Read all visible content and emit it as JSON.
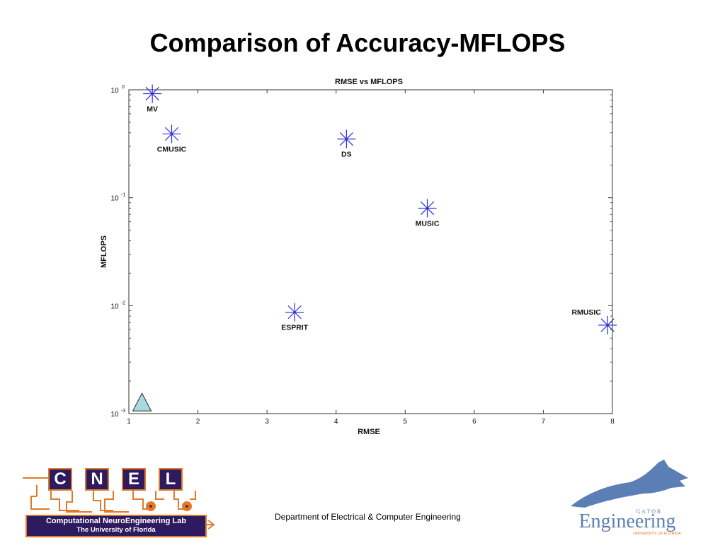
{
  "slide": {
    "title": "Comparison of Accuracy-MFLOPS",
    "footer": "Department of Electrical & Computer Engineering"
  },
  "cnel": {
    "letters": [
      "C",
      "N",
      "E",
      "L"
    ],
    "line1": "Computational NeuroEngineering Lab",
    "line2": "The University of Florida"
  },
  "gator": {
    "word": "Engineering",
    "small_top": "G A T O R",
    "small_bottom": "UNIVERSITY OF FLORIDA"
  },
  "colors": {
    "marker": "#2b2bd9",
    "triangle_fill": "#a9d8de",
    "cnel_purple": "#2e1a5e",
    "cnel_orange": "#e07a2a",
    "gator_blue": "#5b7fb5"
  },
  "chart_data": {
    "type": "scatter",
    "title": "RMSE vs MFLOPS",
    "xlabel": "RMSE",
    "ylabel": "MFLOPS",
    "xlim": [
      1,
      8
    ],
    "ylim": [
      0.001,
      1
    ],
    "yscale": "log",
    "xticks": [
      "1",
      "2",
      "3",
      "4",
      "5",
      "6",
      "7",
      "8"
    ],
    "yticks": [
      {
        "base": "10",
        "exp": "0"
      },
      {
        "base": "10",
        "exp": "-1"
      },
      {
        "base": "10",
        "exp": "-2"
      },
      {
        "base": "10",
        "exp": "-3"
      }
    ],
    "grid": false,
    "marker": "asterisk",
    "points": [
      {
        "label": "MV",
        "x": 1.34,
        "y": 0.92,
        "label_pos": "below"
      },
      {
        "label": "CMUSIC",
        "x": 1.62,
        "y": 0.39,
        "label_pos": "below"
      },
      {
        "label": "DS",
        "x": 4.15,
        "y": 0.35,
        "label_pos": "below"
      },
      {
        "label": "MUSIC",
        "x": 5.32,
        "y": 0.08,
        "label_pos": "below"
      },
      {
        "label": "ESPRIT",
        "x": 3.4,
        "y": 0.0087,
        "label_pos": "below"
      },
      {
        "label": "RMUSIC",
        "x": 7.93,
        "y": 0.0066,
        "label_pos": "above-left"
      }
    ],
    "reference_marker": {
      "shape": "triangle",
      "x": 1.19,
      "y": 0.00125
    }
  }
}
